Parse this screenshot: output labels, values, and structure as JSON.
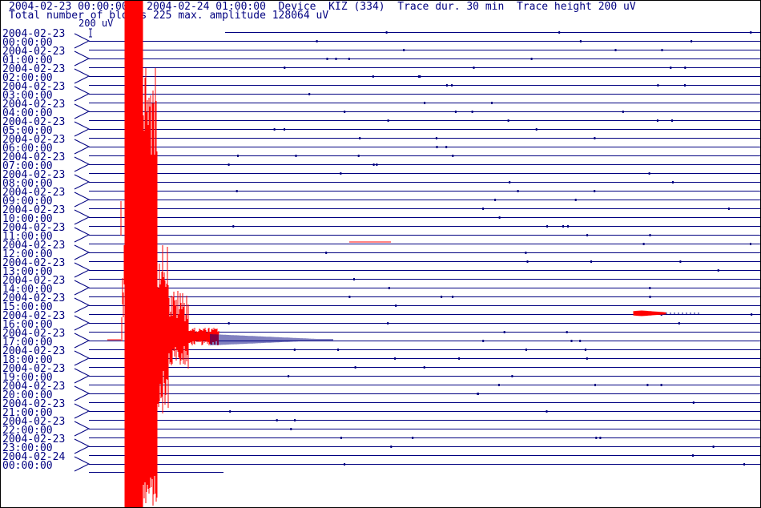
{
  "header": {
    "line1": "2004-02-23 00:00:00 - 2004-02-24 01:00:00  Device  KIZ (334)  Trace dur. 30 min  Trace height 200 uV",
    "line2": "Total number of blocks 225 max. amplitude 128064 uV"
  },
  "scale": {
    "label": "200 uV"
  },
  "colors": {
    "trace": "#000080",
    "clipped": "#ff0000",
    "text": "#000080"
  },
  "time_labels": [
    {
      "date": "2004-02-23",
      "time": "00:00:00"
    },
    {
      "date": "2004-02-23",
      "time": "01:00:00"
    },
    {
      "date": "2004-02-23",
      "time": "02:00:00"
    },
    {
      "date": "2004-02-23",
      "time": "03:00:00"
    },
    {
      "date": "2004-02-23",
      "time": "04:00:00"
    },
    {
      "date": "2004-02-23",
      "time": "05:00:00"
    },
    {
      "date": "2004-02-23",
      "time": "06:00:00"
    },
    {
      "date": "2004-02-23",
      "time": "07:00:00"
    },
    {
      "date": "2004-02-23",
      "time": "08:00:00"
    },
    {
      "date": "2004-02-23",
      "time": "09:00:00"
    },
    {
      "date": "2004-02-23",
      "time": "10:00:00"
    },
    {
      "date": "2004-02-23",
      "time": "11:00:00"
    },
    {
      "date": "2004-02-23",
      "time": "12:00:00"
    },
    {
      "date": "2004-02-23",
      "time": "13:00:00"
    },
    {
      "date": "2004-02-23",
      "time": "14:00:00"
    },
    {
      "date": "2004-02-23",
      "time": "15:00:00"
    },
    {
      "date": "2004-02-23",
      "time": "16:00:00"
    },
    {
      "date": "2004-02-23",
      "time": "17:00:00"
    },
    {
      "date": "2004-02-23",
      "time": "18:00:00"
    },
    {
      "date": "2004-02-23",
      "time": "19:00:00"
    },
    {
      "date": "2004-02-23",
      "time": "20:00:00"
    },
    {
      "date": "2004-02-23",
      "time": "21:00:00"
    },
    {
      "date": "2004-02-23",
      "time": "22:00:00"
    },
    {
      "date": "2004-02-23",
      "time": "23:00:00"
    },
    {
      "date": "2004-02-24",
      "time": "00:00:00"
    }
  ],
  "trace_count": 50
}
